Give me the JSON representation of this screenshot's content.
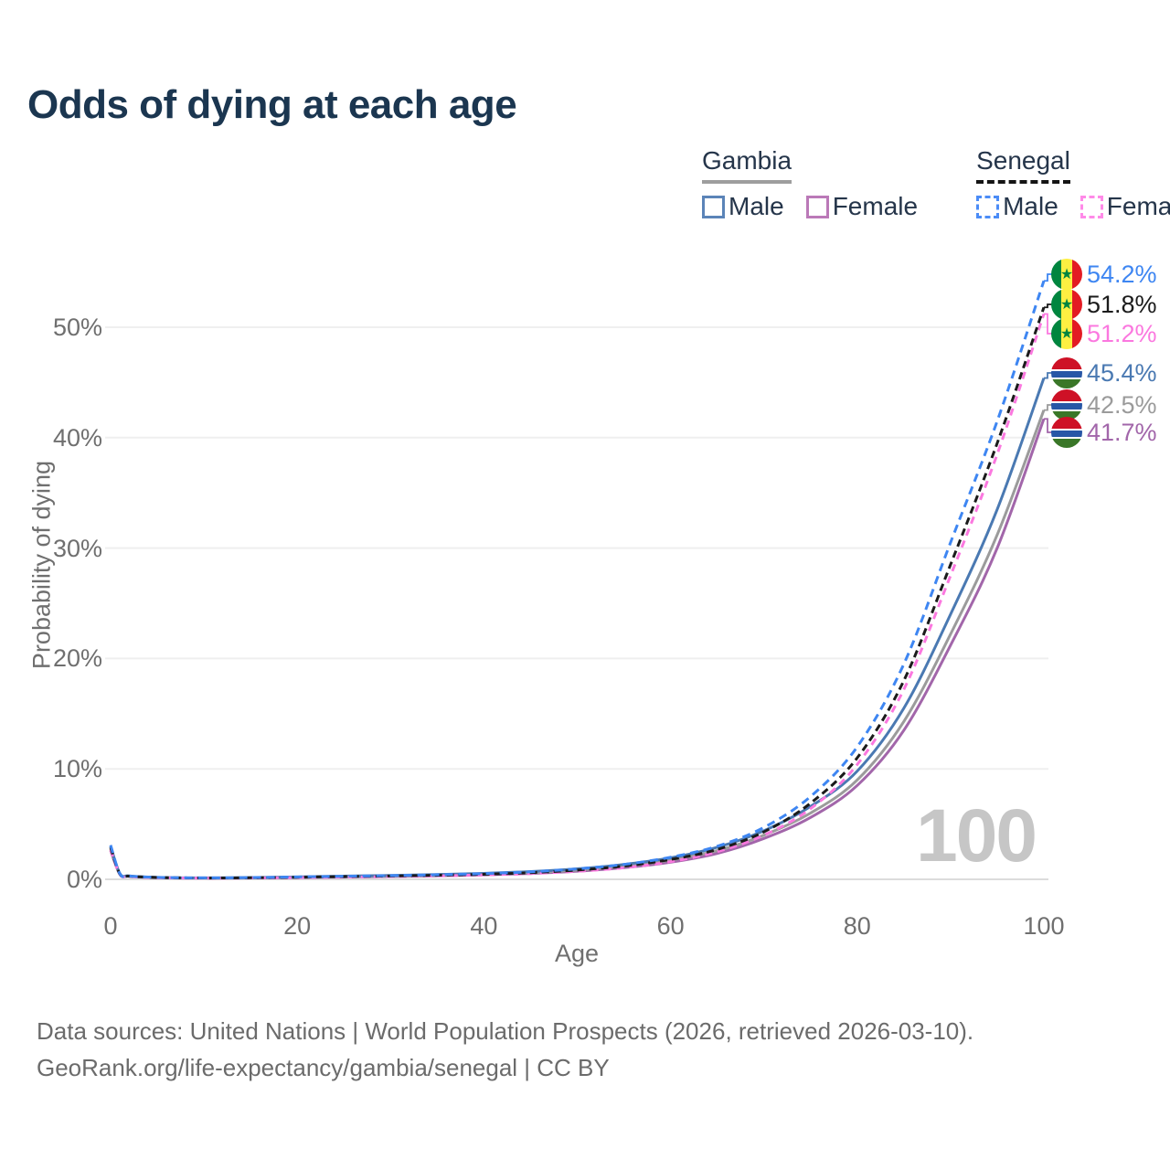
{
  "title": "Odds of dying at each age",
  "legend": {
    "groups": [
      {
        "country": "Gambia",
        "line": "solid",
        "line_color": "#9e9e9e",
        "items": [
          {
            "label": "Male",
            "color": "#5b84b8",
            "line": "solid"
          },
          {
            "label": "Female",
            "color": "#bb79b8",
            "line": "solid"
          }
        ]
      },
      {
        "country": "Senegal",
        "line": "dashed",
        "line_color": "#141414",
        "items": [
          {
            "label": "Male",
            "color": "#4b8cf7",
            "line": "dashed"
          },
          {
            "label": "Female",
            "color": "#ff8ae8",
            "line": "dashed"
          }
        ]
      }
    ]
  },
  "watermark": "100",
  "footer": {
    "line1": "Data sources: United Nations | World Population Prospects (2026, retrieved 2026-03-10).",
    "line2": "GeoRank.org/life-expectancy/gambia/senegal | CC BY"
  },
  "chart_data": {
    "type": "line",
    "title": "Odds of dying at each age",
    "xlabel": "Age",
    "ylabel": "Probability of dying",
    "xlim": [
      0,
      100
    ],
    "ylim": [
      0,
      56
    ],
    "grid": "horizontal",
    "legend_position": "top-right",
    "x_ticks": [
      0,
      20,
      40,
      60,
      80,
      100
    ],
    "y_ticks": [
      "0%",
      "10%",
      "20%",
      "30%",
      "40%",
      "50%"
    ],
    "ages": [
      0,
      1,
      2,
      5,
      10,
      15,
      20,
      25,
      30,
      35,
      40,
      45,
      50,
      55,
      60,
      65,
      70,
      75,
      80,
      85,
      90,
      95,
      100
    ],
    "series": [
      {
        "name": "Senegal male",
        "country": "Senegal",
        "sex": "Male",
        "color": "#3e86f2",
        "line": "dashed",
        "dash_array": [
          9,
          6
        ],
        "flag": "senegal",
        "end_label": "54.2%",
        "values": [
          3.1,
          0.5,
          0.3,
          0.18,
          0.13,
          0.16,
          0.22,
          0.28,
          0.34,
          0.42,
          0.52,
          0.68,
          0.95,
          1.35,
          2.0,
          3.0,
          4.7,
          7.5,
          12.0,
          19.5,
          30.5,
          41.5,
          54.2
        ]
      },
      {
        "name": "Senegal both sexes",
        "country": "Senegal",
        "sex": "Both",
        "color": "#1b1b1b",
        "line": "dashed",
        "dash_array": [
          8,
          5
        ],
        "flag": "senegal",
        "end_label": "51.8%",
        "values": [
          2.9,
          0.47,
          0.28,
          0.17,
          0.12,
          0.14,
          0.19,
          0.25,
          0.3,
          0.37,
          0.46,
          0.6,
          0.84,
          1.2,
          1.8,
          2.7,
          4.3,
          6.9,
          11.0,
          18.0,
          28.5,
          39.5,
          51.8
        ]
      },
      {
        "name": "Senegal female",
        "country": "Senegal",
        "sex": "Female",
        "color": "#fb78df",
        "line": "dashed",
        "dash_array": [
          8,
          6
        ],
        "flag": "senegal",
        "end_label": "51.2%",
        "values": [
          2.7,
          0.44,
          0.26,
          0.15,
          0.11,
          0.12,
          0.16,
          0.2,
          0.25,
          0.31,
          0.4,
          0.52,
          0.73,
          1.05,
          1.6,
          2.5,
          4.0,
          6.4,
          10.4,
          17.2,
          27.5,
          38.5,
          51.2
        ]
      },
      {
        "name": "Gambia male",
        "country": "Gambia",
        "sex": "Male",
        "color": "#4a79b2",
        "line": "solid",
        "dash_array": null,
        "flag": "gambia",
        "end_label": "45.4%",
        "values": [
          3.0,
          0.52,
          0.31,
          0.18,
          0.13,
          0.16,
          0.22,
          0.29,
          0.35,
          0.43,
          0.54,
          0.7,
          0.95,
          1.35,
          1.95,
          2.9,
          4.4,
          6.6,
          9.8,
          15.5,
          24.0,
          33.5,
          45.4
        ]
      },
      {
        "name": "Gambia both sexes",
        "country": "Gambia",
        "sex": "Both",
        "color": "#9b9b9b",
        "line": "solid",
        "dash_array": null,
        "flag": "gambia",
        "end_label": "42.5%",
        "values": [
          2.8,
          0.48,
          0.29,
          0.17,
          0.12,
          0.14,
          0.19,
          0.25,
          0.31,
          0.38,
          0.47,
          0.61,
          0.84,
          1.2,
          1.75,
          2.6,
          4.0,
          6.0,
          9.0,
          14.3,
          22.2,
          31.2,
          42.5
        ]
      },
      {
        "name": "Gambia female",
        "country": "Gambia",
        "sex": "Female",
        "color": "#a266aa",
        "line": "solid",
        "dash_array": null,
        "flag": "gambia",
        "end_label": "41.7%",
        "values": [
          2.6,
          0.45,
          0.27,
          0.15,
          0.11,
          0.12,
          0.16,
          0.21,
          0.26,
          0.32,
          0.4,
          0.53,
          0.73,
          1.05,
          1.55,
          2.35,
          3.7,
          5.6,
          8.5,
          13.5,
          21.2,
          30.0,
          41.7
        ]
      }
    ]
  }
}
